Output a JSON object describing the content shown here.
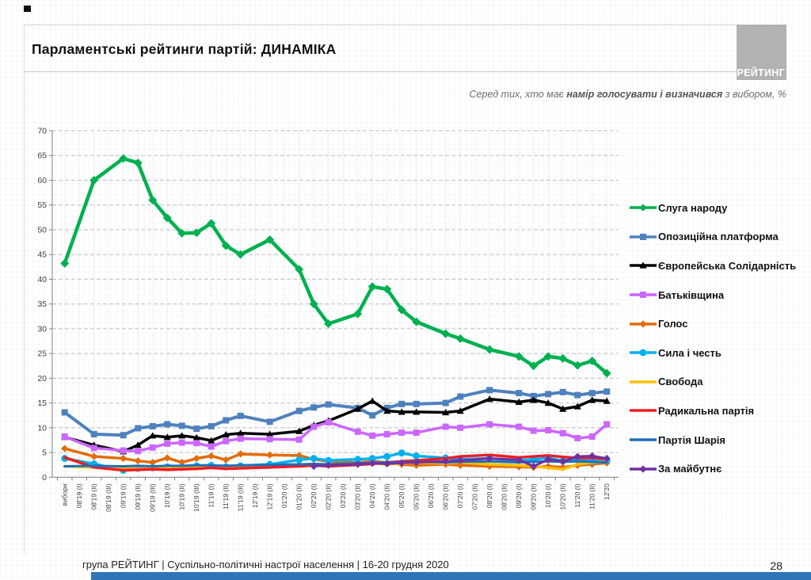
{
  "slide": {
    "title": "Парламентські рейтинги партій: ДИНАМІКА",
    "subtitle_prefix": "Серед тих, хто має ",
    "subtitle_bold": "намір голосувати і визначився",
    "subtitle_suffix": " з вибором, %",
    "logo_text": "РЕЙТИНГ",
    "footer_text": "група РЕЙТИНГ | Суспільно-політичні настрої населення | 16-20 грудня 2020",
    "page_number": "28",
    "footer_bar_color": "#2e75b6",
    "logo_bg_color": "#b2b2b2"
  },
  "chart_data": {
    "type": "line",
    "title": "Парламентські рейтинги партій: ДИНАМІКА",
    "subtitle": "Серед тих, хто має намір голосувати і визначився з вибором, %",
    "legend_position": "right",
    "grid": "horizontal dashed every 5, vertical dotted every category",
    "ylim": [
      0,
      70
    ],
    "y_tick_step": 5,
    "x_categories": [
      "вибори",
      "08'19 (I)",
      "08'19 (II)",
      "08'19 (III)",
      "09'19 (I)",
      "09'19 (II)",
      "09'19 (III)",
      "10'19 (I)",
      "10'19 (II)",
      "10'19 (III)",
      "11'19 (I)",
      "11'19 (II)",
      "11'19 (III)",
      "12'19 (I)",
      "12'19 (II)",
      "01'20 (I)",
      "01'20 (II)",
      "02'20 (I)",
      "02'20 (II)",
      "03'20 (I)",
      "03'20 (II)",
      "04'20 (I)",
      "04'20 (II)",
      "05'20 (I)",
      "05'20 (II)",
      "06'20 (I)",
      "06'20 (II)",
      "07'20 (I)",
      "07'20 (II)",
      "08'20 (I)",
      "08'20 (II)",
      "09'20 (I)",
      "09'20 (II)",
      "10'20 (I)",
      "10'20 (II)",
      "11'20 (I)",
      "11'20 (II)",
      "12'20"
    ],
    "note": "null = no plotted survey point (line drawn straight through); values in %",
    "series": [
      {
        "name": "Слуга народу",
        "color": "#00b050",
        "marker": "diamond",
        "line_width": 4.5,
        "values": [
          43.2,
          null,
          60,
          null,
          64.4,
          63.5,
          56,
          52.4,
          49.3,
          49.4,
          51.3,
          46.8,
          45,
          null,
          48,
          null,
          42,
          35,
          31,
          null,
          33,
          38.5,
          38,
          33.8,
          31.4,
          null,
          29,
          28,
          null,
          25.8,
          null,
          24.4,
          22.5,
          24.4,
          24,
          22.6,
          23.5,
          21
        ]
      },
      {
        "name": "Опозиційна платформа",
        "color": "#4f81bd",
        "marker": "square",
        "line_width": 4,
        "values": [
          13.1,
          null,
          8.7,
          null,
          8.5,
          9.9,
          10.3,
          10.7,
          10.4,
          9.8,
          10.3,
          11.5,
          12.4,
          null,
          11.2,
          null,
          13.4,
          14.1,
          14.7,
          null,
          14,
          12.5,
          14,
          14.8,
          14.8,
          null,
          15,
          16.3,
          null,
          17.6,
          null,
          17,
          16.4,
          16.8,
          17.2,
          16.6,
          17,
          17.3
        ]
      },
      {
        "name": "Європейська Солідарність",
        "color": "#000000",
        "marker": "triangle",
        "line_width": 3.5,
        "values": [
          8.1,
          null,
          6.5,
          null,
          5.2,
          6.5,
          8.4,
          8.1,
          8.4,
          8,
          7.4,
          8.6,
          8.9,
          null,
          8.7,
          null,
          9.3,
          10.5,
          11.4,
          null,
          13.8,
          15.4,
          13.4,
          13.2,
          13.2,
          null,
          13.1,
          13.4,
          null,
          15.8,
          null,
          15.2,
          15.6,
          15,
          13.8,
          14.3,
          15.6,
          15.4
        ]
      },
      {
        "name": "Батьківщина",
        "color": "#cc66ff",
        "marker": "square",
        "line_width": 3.5,
        "values": [
          8.2,
          null,
          5.9,
          null,
          5.4,
          5.3,
          6,
          6.8,
          7,
          6.9,
          6.2,
          7.3,
          7.8,
          null,
          7.7,
          null,
          7.6,
          10.2,
          11.1,
          null,
          9.2,
          8.4,
          8.7,
          9,
          9,
          null,
          10.2,
          10,
          null,
          10.7,
          null,
          10.2,
          9.4,
          9.5,
          8.9,
          7.9,
          8.2,
          10.7
        ]
      },
      {
        "name": "Голос",
        "color": "#e36c0a",
        "marker": "diamond",
        "line_width": 3.5,
        "values": [
          5.8,
          null,
          4.2,
          null,
          3.8,
          3.3,
          3,
          3.9,
          3,
          3.8,
          4.3,
          3.5,
          4.7,
          null,
          4.5,
          null,
          4.4,
          3.6,
          3.2,
          null,
          2.9,
          3.3,
          2.9,
          2.6,
          2.4,
          null,
          2.6,
          2.4,
          null,
          2.2,
          null,
          2.1,
          2,
          2.2,
          2,
          2.4,
          2.6,
          2.9
        ]
      },
      {
        "name": "Сила і честь",
        "color": "#00b0f0",
        "marker": "circle",
        "line_width": 3.5,
        "values": [
          3.8,
          null,
          2.7,
          null,
          1.4,
          1.8,
          1.9,
          2.1,
          2,
          2.3,
          2.4,
          2.1,
          2.3,
          null,
          2.6,
          null,
          3.5,
          3.8,
          3.4,
          null,
          3.6,
          3.8,
          4.2,
          4.9,
          4.3,
          null,
          3.9,
          3.6,
          null,
          3.8,
          null,
          3.4,
          3.6,
          3.9,
          3.3,
          3.7,
          3.2,
          3.4
        ]
      },
      {
        "name": "Свобода",
        "color": "#ffc000",
        "marker": "none",
        "line_width": 3.5,
        "values": [
          2.2,
          null,
          2,
          null,
          1.8,
          1.7,
          1.8,
          2,
          1.9,
          2.1,
          2.2,
          2,
          2.2,
          null,
          2.3,
          null,
          2.5,
          2.6,
          2.4,
          null,
          2.6,
          2.8,
          2.6,
          2.8,
          3,
          null,
          2.8,
          3,
          null,
          2.6,
          null,
          2.4,
          2.2,
          1.9,
          1.6,
          2.6,
          3,
          3.1
        ]
      },
      {
        "name": "Радикальна партія",
        "color": "#ef1c24",
        "marker": "none",
        "line_width": 3.5,
        "values": [
          4,
          null,
          2,
          null,
          1.4,
          1.5,
          1.6,
          1.5,
          1.6,
          1.7,
          1.9,
          1.7,
          1.8,
          null,
          2,
          null,
          2.2,
          2.4,
          2.2,
          null,
          2.5,
          2.7,
          3,
          3.2,
          3.4,
          null,
          3.8,
          4.2,
          null,
          4.5,
          null,
          4,
          4.2,
          4.4,
          4.1,
          3.9,
          3.9,
          3.7
        ]
      },
      {
        "name": "Партія Шарія",
        "color": "#1c6fba",
        "marker": "none",
        "line_width": 3,
        "values": [
          2.2,
          null,
          2.3,
          null,
          2.2,
          2.3,
          2.2,
          2.3,
          2.3,
          2.4,
          2.4,
          2.3,
          2.4,
          null,
          2.5,
          null,
          2.6,
          2.7,
          2.6,
          null,
          2.8,
          2.9,
          3,
          3,
          3.1,
          null,
          3,
          3.1,
          null,
          3.2,
          null,
          3,
          3.1,
          3.2,
          3.1,
          3.2,
          3.1,
          3
        ]
      },
      {
        "name": "За майбутнє",
        "color": "#7030a0",
        "marker": "diamond",
        "line_width": 3,
        "values": [
          null,
          null,
          null,
          null,
          null,
          null,
          null,
          null,
          null,
          null,
          null,
          null,
          null,
          null,
          null,
          null,
          null,
          2.2,
          2.4,
          null,
          2.6,
          2.8,
          2.7,
          2.9,
          3,
          null,
          3.2,
          3.4,
          null,
          3.8,
          null,
          3.5,
          2.2,
          3.6,
          3.2,
          4.2,
          4.3,
          3.8
        ]
      }
    ]
  }
}
